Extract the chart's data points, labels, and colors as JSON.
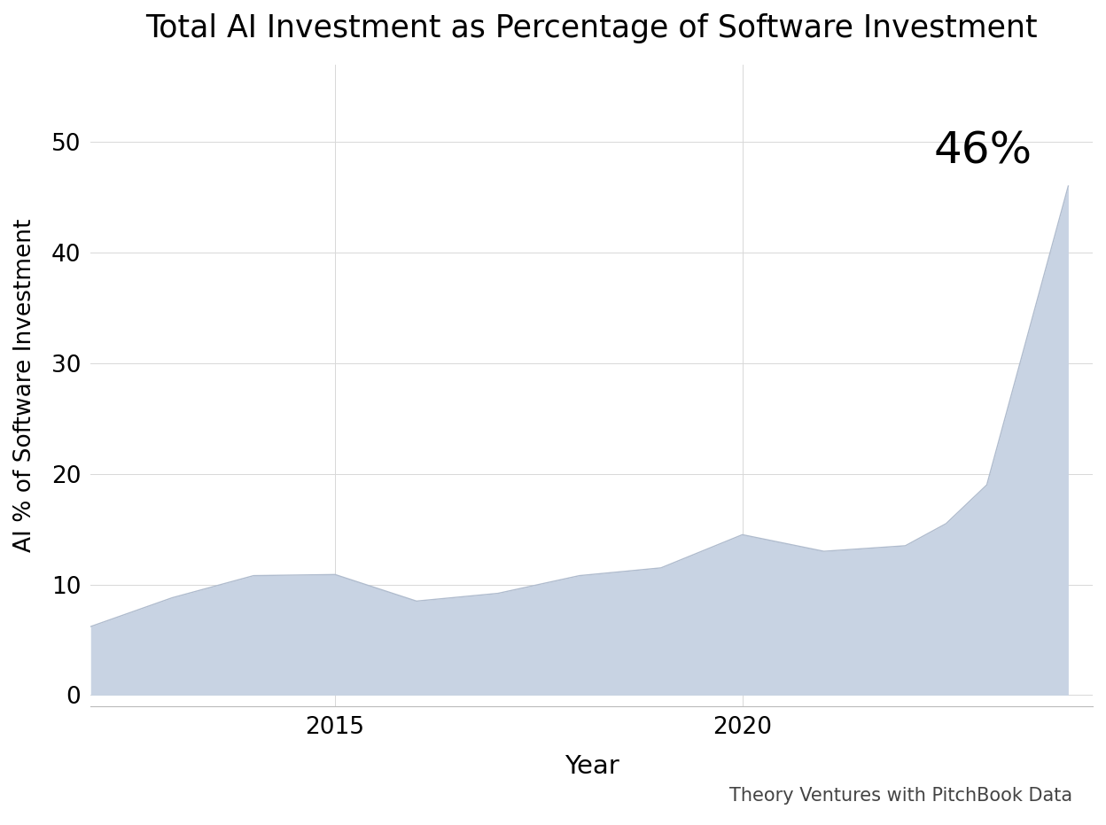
{
  "title": "Total AI Investment as Percentage of Software Investment",
  "xlabel": "Year",
  "ylabel": "AI % of Software Investment",
  "source": "Theory Ventures with PitchBook Data",
  "annotation_label": "46%",
  "annotation_fontsize": 36,
  "fill_color": "#c8d3e3",
  "fill_alpha": 1.0,
  "line_color": "#b0bcce",
  "line_width": 1.0,
  "background_color": "#ffffff",
  "yticks": [
    0,
    10,
    20,
    30,
    40,
    50
  ],
  "xticks": [
    2015,
    2020
  ],
  "ylim": [
    -1,
    57
  ],
  "xlim": [
    2012,
    2024.3
  ],
  "years": [
    2012,
    2013,
    2014,
    2015,
    2016,
    2017,
    2018,
    2019,
    2020,
    2021,
    2022,
    2022.5,
    2023,
    2024
  ],
  "values": [
    6.2,
    8.8,
    10.8,
    10.9,
    8.5,
    9.2,
    10.8,
    11.5,
    14.5,
    13.0,
    13.5,
    15.5,
    19.0,
    46.0
  ]
}
